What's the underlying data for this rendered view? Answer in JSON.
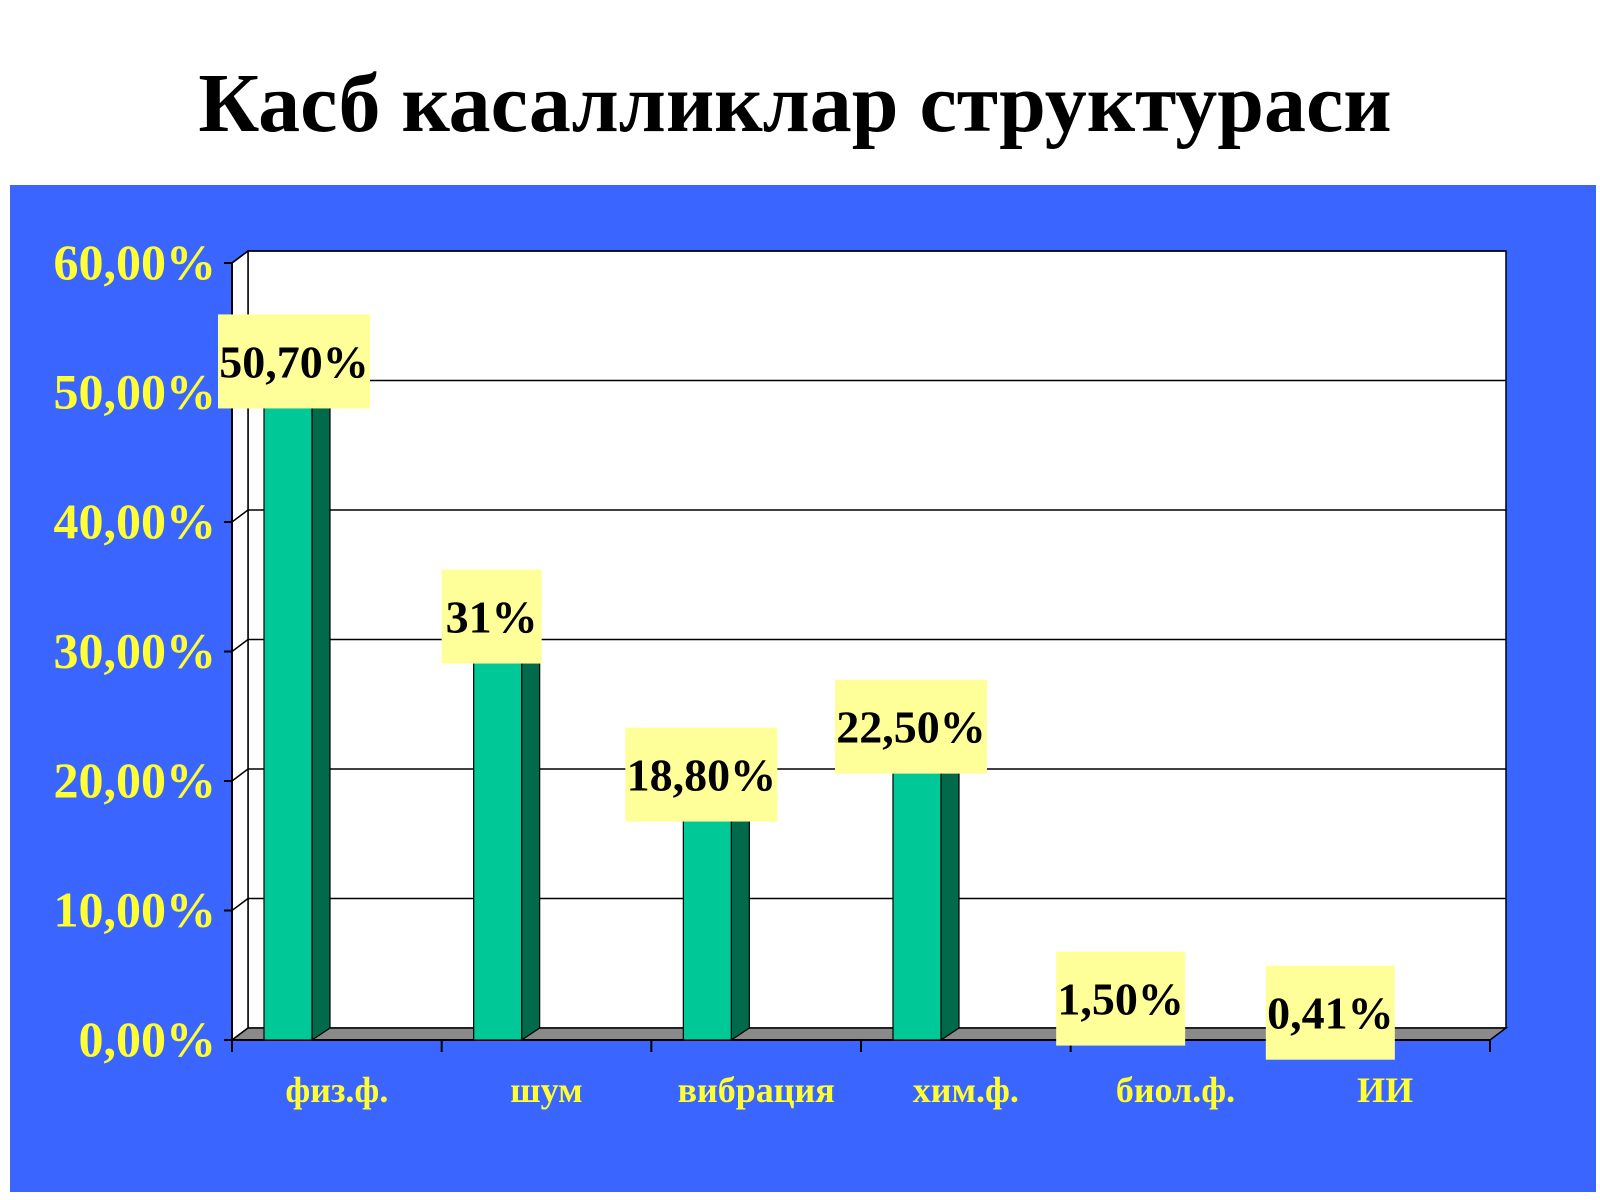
{
  "slide": {
    "title": "Касб касалликлар структураси"
  },
  "colors": {
    "panel_background": "#3a66ff",
    "plot_background": "#ffffff",
    "bar_front": "#00c896",
    "bar_side": "#006a4a",
    "bar_top": "#00a07a",
    "floor": "#8a8a8a",
    "axis_text": "#ffff33",
    "data_label_box": "#ffff99",
    "gridline": "#000000"
  },
  "chart_data": {
    "type": "bar",
    "title": "Касб касалликлар структураси",
    "categories": [
      "физ.ф.",
      "шум",
      "вибрация",
      "хим.ф.",
      "биол.ф.",
      "ИИ"
    ],
    "values": [
      50.7,
      31,
      18.8,
      22.5,
      1.5,
      0.41
    ],
    "data_labels": [
      "50,70%",
      "31%",
      "18,80%",
      "22,50%",
      "1,50%",
      "0,41%"
    ],
    "y_ticks": [
      "0,00%",
      "10,00%",
      "20,00%",
      "30,00%",
      "40,00%",
      "50,00%",
      "60,00%"
    ],
    "y_tick_values": [
      0,
      10,
      20,
      30,
      40,
      50,
      60
    ],
    "ylim": [
      0,
      60
    ],
    "xlabel": "",
    "ylabel": "",
    "grid": true,
    "legend": false,
    "style": "3d-columns"
  }
}
